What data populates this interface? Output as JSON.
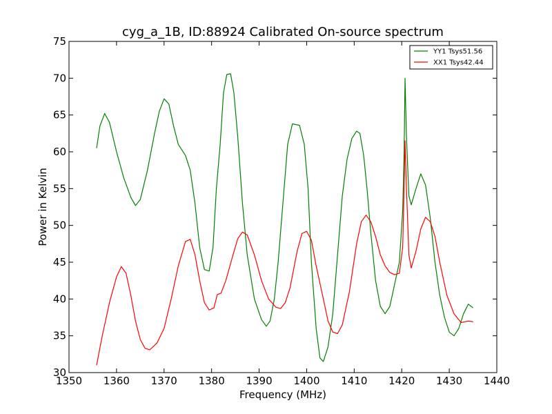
{
  "chart_data": {
    "type": "line",
    "title": "cyg_a_1B, ID:88924 Calibrated On-source spectrum",
    "xlabel": "Frequency (MHz)",
    "ylabel": "Power in Kelvin",
    "xlim": [
      1350,
      1440
    ],
    "ylim": [
      30,
      75
    ],
    "xticks": [
      "1350",
      "1360",
      "1370",
      "1380",
      "1390",
      "1400",
      "1410",
      "1420",
      "1430",
      "1440"
    ],
    "yticks": [
      "30",
      "35",
      "40",
      "45",
      "50",
      "55",
      "60",
      "65",
      "70",
      "75"
    ],
    "grid": false,
    "legend_position": "top-right",
    "series": [
      {
        "name": "YY1 Tsys51.56",
        "color": "#008000",
        "x": [
          1355.8,
          1356.5,
          1357.5,
          1358.5,
          1360,
          1361.5,
          1363,
          1364,
          1365,
          1366.5,
          1368,
          1369,
          1370,
          1371,
          1372,
          1373,
          1374.5,
          1375.5,
          1376.5,
          1377.5,
          1378.5,
          1379.5,
          1380.3,
          1381,
          1381.8,
          1382.5,
          1383.2,
          1384,
          1384.7,
          1385.5,
          1386.5,
          1387.5,
          1389,
          1390.5,
          1391.5,
          1392.3,
          1393.2,
          1394,
          1395,
          1396,
          1397,
          1398.5,
          1399.5,
          1400.3,
          1401,
          1402,
          1402.8,
          1403.5,
          1404.5,
          1405.5,
          1406.5,
          1407.5,
          1408.5,
          1409.5,
          1410.5,
          1411.2,
          1412,
          1412.7,
          1413.5,
          1414.5,
          1415.5,
          1416.5,
          1417.5,
          1418.5,
          1419.5,
          1420.2,
          1420.5,
          1420.7,
          1421,
          1421.5,
          1422,
          1423,
          1424,
          1425,
          1426,
          1427,
          1428,
          1429,
          1430,
          1431,
          1432,
          1433,
          1434,
          1435
        ],
        "values": [
          60.5,
          63.5,
          65.2,
          64.0,
          60.0,
          56.5,
          53.8,
          52.7,
          53.5,
          57.5,
          62.5,
          65.5,
          67.2,
          66.5,
          63.5,
          61.0,
          59.5,
          57.5,
          53.0,
          47.0,
          44.0,
          43.8,
          47.0,
          55.0,
          61.0,
          68.0,
          70.5,
          70.6,
          68.0,
          62.0,
          53.0,
          46.0,
          40.0,
          37.2,
          36.3,
          37.0,
          40.0,
          45.0,
          53.0,
          61.0,
          63.8,
          63.6,
          61.0,
          55.0,
          45.0,
          36.0,
          32.0,
          31.5,
          33.5,
          38.0,
          46.0,
          54.0,
          59.0,
          61.8,
          62.8,
          62.5,
          59.5,
          55.0,
          49.0,
          42.5,
          39.0,
          38.0,
          39.0,
          42.0,
          45.0,
          52.0,
          60.0,
          70.0,
          62.0,
          54.0,
          52.8,
          55.0,
          57.0,
          55.5,
          51.0,
          45.0,
          40.5,
          37.5,
          35.5,
          35.0,
          36.0,
          38.0,
          39.3,
          38.8
        ]
      },
      {
        "name": "XX1 Tsys42.44",
        "color": "#ff0000",
        "x": [
          1355.8,
          1357,
          1358.5,
          1360,
          1361,
          1362,
          1363,
          1364,
          1365,
          1366,
          1367,
          1368.5,
          1370,
          1371.5,
          1373,
          1374.5,
          1375.5,
          1376.5,
          1377.5,
          1378.5,
          1379.5,
          1380.5,
          1381.2,
          1382,
          1383,
          1384.5,
          1385.5,
          1386.5,
          1387.5,
          1389,
          1390.5,
          1392,
          1393.5,
          1394.5,
          1395.5,
          1396.5,
          1398,
          1399,
          1400,
          1401,
          1402,
          1403.5,
          1404.5,
          1405.5,
          1406.5,
          1407.5,
          1409,
          1410.5,
          1411.5,
          1412.5,
          1413.5,
          1414.5,
          1415.5,
          1416.5,
          1417.5,
          1418.5,
          1419.5,
          1420.2,
          1420.5,
          1420.7,
          1421,
          1421.5,
          1422,
          1423,
          1424,
          1425,
          1426,
          1427,
          1428,
          1429.5,
          1431,
          1432.5,
          1434,
          1435
        ],
        "values": [
          31.0,
          35.0,
          39.5,
          43.0,
          44.4,
          43.5,
          40.5,
          37.0,
          34.5,
          33.3,
          33.1,
          34.0,
          36.0,
          40.0,
          44.5,
          47.8,
          48.1,
          46.0,
          42.5,
          39.5,
          38.5,
          38.8,
          40.6,
          40.8,
          42.5,
          46.0,
          48.2,
          49.1,
          48.7,
          46.0,
          42.5,
          40.0,
          38.9,
          38.7,
          39.5,
          41.5,
          46.5,
          48.9,
          49.2,
          48.0,
          44.5,
          40.0,
          37.0,
          35.5,
          35.3,
          36.5,
          41.0,
          47.5,
          50.5,
          51.4,
          50.5,
          48.5,
          46.0,
          44.5,
          43.6,
          43.3,
          43.5,
          47.0,
          55.0,
          61.5,
          55.0,
          46.0,
          44.2,
          46.5,
          49.5,
          51.1,
          50.5,
          48.5,
          45.0,
          40.5,
          38.0,
          36.8,
          37.0,
          36.9
        ]
      }
    ]
  }
}
